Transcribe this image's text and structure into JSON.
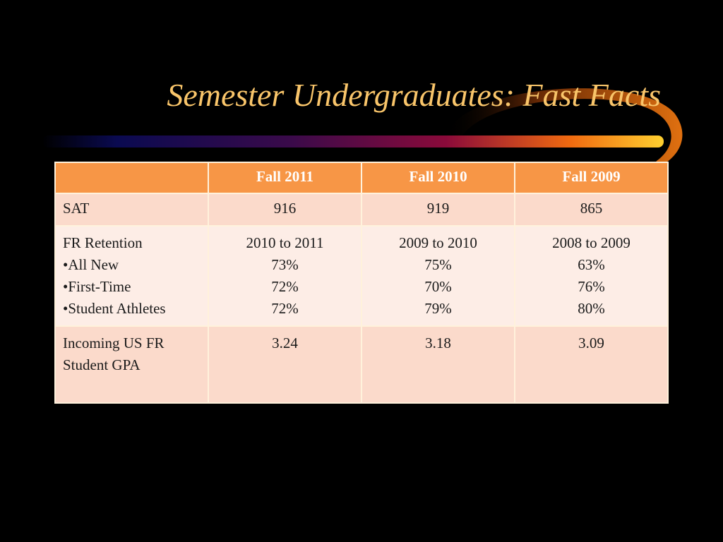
{
  "title": "Semester Undergraduates: Fast Facts",
  "table": {
    "columns": [
      "Fall 2011",
      "Fall 2010",
      "Fall 2009"
    ],
    "rows": [
      {
        "label": [
          "SAT"
        ],
        "cells": [
          [
            916
          ],
          [
            919
          ],
          [
            865
          ]
        ]
      },
      {
        "label": [
          "FR Retention",
          "•All New",
          "•First-Time",
          "•Student Athletes"
        ],
        "cells": [
          [
            "2010 to 2011",
            "73%",
            "72%",
            "72%"
          ],
          [
            "2009 to 2010",
            "75%",
            "70%",
            "79%"
          ],
          [
            "2008 to 2009",
            "63%",
            "76%",
            "80%"
          ]
        ]
      },
      {
        "label": [
          "Incoming US FR",
          "Student GPA"
        ],
        "cells": [
          [
            3.24
          ],
          [
            3.18
          ],
          [
            3.09
          ]
        ]
      }
    ]
  }
}
